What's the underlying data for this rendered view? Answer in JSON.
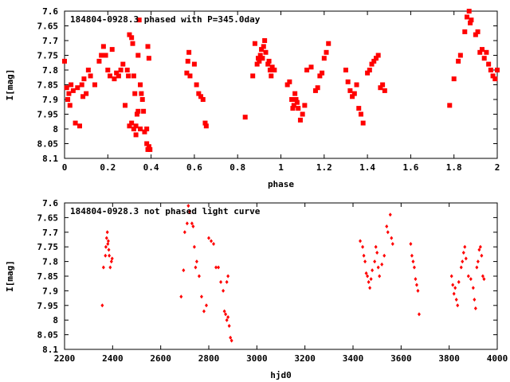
{
  "chart_data": [
    {
      "type": "scatter",
      "title": "184804-0928.3 phased with P=345.0day",
      "xlabel": "phase",
      "ylabel": "I[mag]",
      "xlim": [
        0,
        2
      ],
      "ylim": [
        8.1,
        7.6
      ],
      "y_inverted": true,
      "xticks": [
        "0",
        "0.2",
        "0.4",
        "0.6",
        "0.8",
        "1",
        "1.2",
        "1.4",
        "1.6",
        "1.8",
        "2"
      ],
      "yticks": [
        "7.6",
        "7.65",
        "7.7",
        "7.75",
        "7.8",
        "7.85",
        "7.9",
        "7.95",
        "8",
        "8.05",
        "8.1"
      ],
      "grid": false,
      "color": "#ff0000",
      "marker": "filled-square",
      "points": [
        [
          0.0,
          7.77
        ],
        [
          0.01,
          7.86
        ],
        [
          0.015,
          7.9
        ],
        [
          0.02,
          7.88
        ],
        [
          0.025,
          7.92
        ],
        [
          0.03,
          7.85
        ],
        [
          0.04,
          7.87
        ],
        [
          0.05,
          7.98
        ],
        [
          0.06,
          7.86
        ],
        [
          0.07,
          7.99
        ],
        [
          0.08,
          7.85
        ],
        [
          0.085,
          7.89
        ],
        [
          0.09,
          7.83
        ],
        [
          0.1,
          7.88
        ],
        [
          0.11,
          7.8
        ],
        [
          0.12,
          7.82
        ],
        [
          0.14,
          7.85
        ],
        [
          0.16,
          7.77
        ],
        [
          0.17,
          7.75
        ],
        [
          0.18,
          7.72
        ],
        [
          0.19,
          7.75
        ],
        [
          0.2,
          7.8
        ],
        [
          0.21,
          7.82
        ],
        [
          0.22,
          7.73
        ],
        [
          0.23,
          7.83
        ],
        [
          0.24,
          7.81
        ],
        [
          0.25,
          7.82
        ],
        [
          0.26,
          7.8
        ],
        [
          0.27,
          7.78
        ],
        [
          0.28,
          7.92
        ],
        [
          0.29,
          7.8
        ],
        [
          0.295,
          7.82
        ],
        [
          0.3,
          7.68
        ],
        [
          0.31,
          7.69
        ],
        [
          0.315,
          7.71
        ],
        [
          0.32,
          7.82
        ],
        [
          0.325,
          7.88
        ],
        [
          0.33,
          7.99
        ],
        [
          0.335,
          7.95
        ],
        [
          0.34,
          7.75
        ],
        [
          0.345,
          7.63
        ],
        [
          0.35,
          7.85
        ],
        [
          0.355,
          7.88
        ],
        [
          0.36,
          7.9
        ],
        [
          0.365,
          7.94
        ],
        [
          0.37,
          8.01
        ],
        [
          0.38,
          8.0
        ],
        [
          0.385,
          7.72
        ],
        [
          0.39,
          7.76
        ],
        [
          0.3,
          7.99
        ],
        [
          0.31,
          7.98
        ],
        [
          0.32,
          8.0
        ],
        [
          0.33,
          8.02
        ],
        [
          0.34,
          7.94
        ],
        [
          0.35,
          8.0
        ],
        [
          0.38,
          8.05
        ],
        [
          0.385,
          8.07
        ],
        [
          0.39,
          8.06
        ],
        [
          0.395,
          8.07
        ],
        [
          0.565,
          7.81
        ],
        [
          0.57,
          7.77
        ],
        [
          0.575,
          7.74
        ],
        [
          0.58,
          7.82
        ],
        [
          0.6,
          7.78
        ],
        [
          0.61,
          7.85
        ],
        [
          0.62,
          7.88
        ],
        [
          0.63,
          7.89
        ],
        [
          0.64,
          7.9
        ],
        [
          0.65,
          7.98
        ],
        [
          0.655,
          7.99
        ],
        [
          0.835,
          7.96
        ],
        [
          0.87,
          7.82
        ],
        [
          0.88,
          7.71
        ],
        [
          0.89,
          7.78
        ],
        [
          0.895,
          7.76
        ],
        [
          0.9,
          7.77
        ],
        [
          0.905,
          7.75
        ],
        [
          0.91,
          7.73
        ],
        [
          0.915,
          7.76
        ],
        [
          0.92,
          7.72
        ],
        [
          0.925,
          7.7
        ],
        [
          0.93,
          7.74
        ],
        [
          0.94,
          7.78
        ],
        [
          0.945,
          7.77
        ],
        [
          0.95,
          7.8
        ],
        [
          0.955,
          7.82
        ],
        [
          0.96,
          7.79
        ],
        [
          0.97,
          7.8
        ],
        [
          1.03,
          7.85
        ],
        [
          1.04,
          7.84
        ],
        [
          1.05,
          7.9
        ],
        [
          1.055,
          7.93
        ],
        [
          1.06,
          7.92
        ],
        [
          1.065,
          7.88
        ],
        [
          1.07,
          7.9
        ],
        [
          1.075,
          7.91
        ],
        [
          1.08,
          7.93
        ],
        [
          1.09,
          7.97
        ],
        [
          1.1,
          7.95
        ],
        [
          1.11,
          7.92
        ],
        [
          1.12,
          7.8
        ],
        [
          1.14,
          7.79
        ],
        [
          1.16,
          7.87
        ],
        [
          1.17,
          7.86
        ],
        [
          1.18,
          7.82
        ],
        [
          1.19,
          7.81
        ],
        [
          1.2,
          7.76
        ],
        [
          1.21,
          7.74
        ],
        [
          1.22,
          7.71
        ],
        [
          1.3,
          7.8
        ],
        [
          1.31,
          7.84
        ],
        [
          1.32,
          7.87
        ],
        [
          1.33,
          7.89
        ],
        [
          1.34,
          7.88
        ],
        [
          1.35,
          7.85
        ],
        [
          1.36,
          7.93
        ],
        [
          1.37,
          7.95
        ],
        [
          1.38,
          7.98
        ],
        [
          1.4,
          7.81
        ],
        [
          1.41,
          7.8
        ],
        [
          1.42,
          7.78
        ],
        [
          1.43,
          7.77
        ],
        [
          1.44,
          7.76
        ],
        [
          1.45,
          7.75
        ],
        [
          1.46,
          7.86
        ],
        [
          1.47,
          7.85
        ],
        [
          1.48,
          7.87
        ],
        [
          1.78,
          7.92
        ],
        [
          1.8,
          7.83
        ],
        [
          1.82,
          7.77
        ],
        [
          1.83,
          7.75
        ],
        [
          1.85,
          7.67
        ],
        [
          1.86,
          7.62
        ],
        [
          1.87,
          7.6
        ],
        [
          1.875,
          7.64
        ],
        [
          1.88,
          7.63
        ],
        [
          1.9,
          7.68
        ],
        [
          1.91,
          7.67
        ],
        [
          1.92,
          7.74
        ],
        [
          1.93,
          7.73
        ],
        [
          1.94,
          7.76
        ],
        [
          1.95,
          7.74
        ],
        [
          1.96,
          7.78
        ],
        [
          1.97,
          7.8
        ],
        [
          1.98,
          7.82
        ],
        [
          1.99,
          7.83
        ],
        [
          2.0,
          7.8
        ]
      ]
    },
    {
      "type": "scatter",
      "title": "184804-0928.3 not phased light curve",
      "xlabel": "hjd0",
      "ylabel": "I[mag]",
      "xlim": [
        2200,
        4000
      ],
      "ylim": [
        8.1,
        7.6
      ],
      "y_inverted": true,
      "xticks": [
        "2200",
        "2400",
        "2600",
        "2800",
        "3000",
        "3200",
        "3400",
        "3600",
        "3800",
        "4000"
      ],
      "yticks": [
        "7.6",
        "7.65",
        "7.7",
        "7.75",
        "7.8",
        "7.85",
        "7.9",
        "7.95",
        "8",
        "8.05",
        "8.1"
      ],
      "grid": false,
      "color": "#ff0000",
      "marker": "small-diamond",
      "points": [
        [
          2357,
          7.95
        ],
        [
          2362,
          7.82
        ],
        [
          2370,
          7.78
        ],
        [
          2372,
          7.75
        ],
        [
          2375,
          7.72
        ],
        [
          2378,
          7.7
        ],
        [
          2380,
          7.74
        ],
        [
          2382,
          7.73
        ],
        [
          2384,
          7.76
        ],
        [
          2386,
          7.78
        ],
        [
          2390,
          7.82
        ],
        [
          2395,
          7.8
        ],
        [
          2398,
          7.79
        ],
        [
          2685,
          7.92
        ],
        [
          2695,
          7.83
        ],
        [
          2700,
          7.7
        ],
        [
          2710,
          7.67
        ],
        [
          2715,
          7.61
        ],
        [
          2720,
          7.63
        ],
        [
          2730,
          7.67
        ],
        [
          2735,
          7.68
        ],
        [
          2740,
          7.75
        ],
        [
          2745,
          7.82
        ],
        [
          2750,
          7.8
        ],
        [
          2760,
          7.85
        ],
        [
          2770,
          7.92
        ],
        [
          2780,
          7.97
        ],
        [
          2790,
          7.95
        ],
        [
          2800,
          7.72
        ],
        [
          2810,
          7.73
        ],
        [
          2820,
          7.74
        ],
        [
          2830,
          7.82
        ],
        [
          2840,
          7.82
        ],
        [
          2850,
          7.87
        ],
        [
          2860,
          7.9
        ],
        [
          2865,
          7.97
        ],
        [
          2870,
          7.98
        ],
        [
          2875,
          8.0
        ],
        [
          2880,
          7.99
        ],
        [
          2885,
          8.02
        ],
        [
          2890,
          8.06
        ],
        [
          2895,
          8.07
        ],
        [
          2880,
          7.85
        ],
        [
          2875,
          7.87
        ],
        [
          3430,
          7.73
        ],
        [
          3440,
          7.75
        ],
        [
          3445,
          7.78
        ],
        [
          3450,
          7.8
        ],
        [
          3455,
          7.84
        ],
        [
          3460,
          7.85
        ],
        [
          3465,
          7.87
        ],
        [
          3470,
          7.89
        ],
        [
          3475,
          7.86
        ],
        [
          3480,
          7.83
        ],
        [
          3490,
          7.8
        ],
        [
          3495,
          7.75
        ],
        [
          3500,
          7.77
        ],
        [
          3505,
          7.82
        ],
        [
          3510,
          7.85
        ],
        [
          3520,
          7.81
        ],
        [
          3530,
          7.78
        ],
        [
          3540,
          7.68
        ],
        [
          3545,
          7.7
        ],
        [
          3555,
          7.64
        ],
        [
          3560,
          7.72
        ],
        [
          3565,
          7.74
        ],
        [
          3640,
          7.74
        ],
        [
          3645,
          7.78
        ],
        [
          3650,
          7.8
        ],
        [
          3655,
          7.82
        ],
        [
          3660,
          7.86
        ],
        [
          3665,
          7.88
        ],
        [
          3670,
          7.9
        ],
        [
          3675,
          7.98
        ],
        [
          3810,
          7.85
        ],
        [
          3815,
          7.88
        ],
        [
          3820,
          7.91
        ],
        [
          3825,
          7.89
        ],
        [
          3830,
          7.93
        ],
        [
          3835,
          7.95
        ],
        [
          3840,
          7.87
        ],
        [
          3850,
          7.82
        ],
        [
          3855,
          7.8
        ],
        [
          3860,
          7.77
        ],
        [
          3865,
          7.75
        ],
        [
          3870,
          7.79
        ],
        [
          3880,
          7.85
        ],
        [
          3890,
          7.86
        ],
        [
          3900,
          7.89
        ],
        [
          3905,
          7.93
        ],
        [
          3910,
          7.96
        ],
        [
          3915,
          7.82
        ],
        [
          3920,
          7.8
        ],
        [
          3925,
          7.76
        ],
        [
          3930,
          7.75
        ],
        [
          3935,
          7.78
        ],
        [
          3940,
          7.85
        ],
        [
          3945,
          7.86
        ]
      ]
    }
  ]
}
